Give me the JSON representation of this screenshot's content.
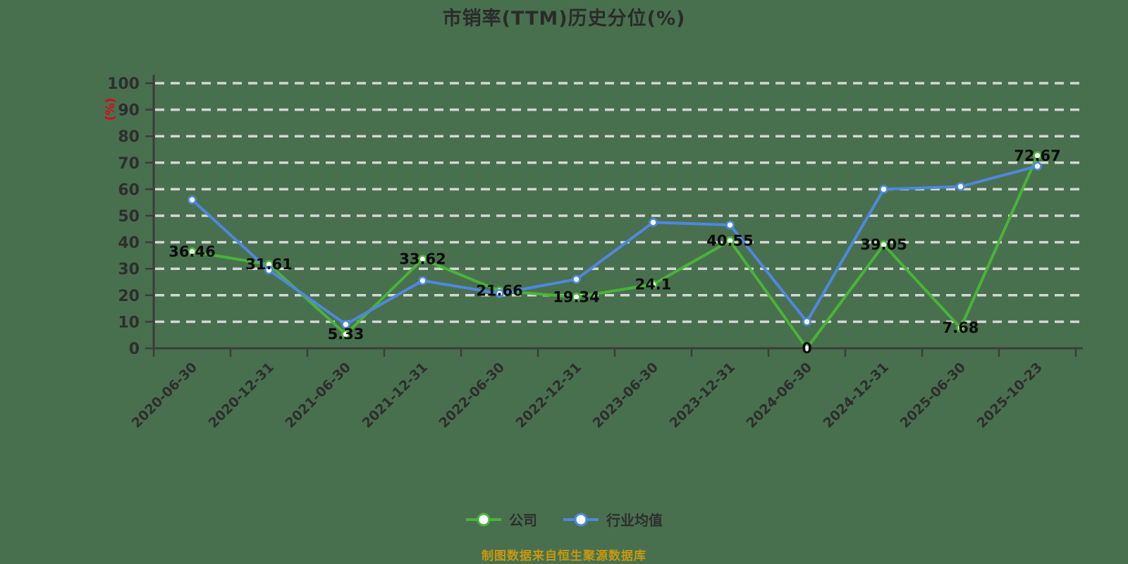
{
  "title": "市销率(TTM)历史分位(%)",
  "y_axis_unit": "(%)",
  "footer": {
    "source_note": "制图数据来自恒生聚源数据库"
  },
  "legend": {
    "items": [
      {
        "label": "公司",
        "color": "#4ab339"
      },
      {
        "label": "行业均值",
        "color": "#4f87e0"
      }
    ]
  },
  "colors": {
    "background": "#48704e",
    "gridline": "#d6d6d6",
    "axis": "#3c3c3c",
    "tick_text": "#2e2e2e",
    "title_text": "#2b2b2b",
    "value_label_text": "#0b0b0b",
    "y_unit_text": "#e60012",
    "footer_text": "#c8990e",
    "marker_fill": "#ffffff"
  },
  "chart_data": {
    "type": "line",
    "categories": [
      "2020-06-30",
      "2020-12-31",
      "2021-06-30",
      "2021-12-31",
      "2022-06-30",
      "2022-12-31",
      "2023-06-30",
      "2023-12-31",
      "2024-06-30",
      "2024-12-31",
      "2025-06-30",
      "2025-10-23"
    ],
    "series": [
      {
        "name": "公司",
        "color": "#4ab339",
        "values": [
          36.46,
          31.61,
          5.33,
          33.62,
          21.66,
          19.34,
          24.1,
          40.55,
          0,
          39.05,
          7.68,
          72.67
        ],
        "value_labels": [
          "36.46",
          "31.61",
          "5.33",
          "33.62",
          "21.66",
          "19.34",
          "24.1",
          "40.55",
          "0",
          "39.05",
          "7.68",
          "72.67"
        ],
        "show_labels": true
      },
      {
        "name": "行业均值",
        "color": "#4f87e0",
        "values": [
          56,
          29.5,
          9,
          25.5,
          20.7,
          26,
          47.5,
          46.5,
          10,
          60,
          61,
          68.7
        ],
        "show_labels": false
      }
    ],
    "ylim": [
      0,
      100
    ],
    "y_ticks": [
      0,
      10,
      20,
      30,
      40,
      50,
      60,
      70,
      80,
      90,
      100
    ],
    "grid": "horizontal-dashed",
    "x_label_rotation": -45,
    "legend_position": "bottom"
  }
}
